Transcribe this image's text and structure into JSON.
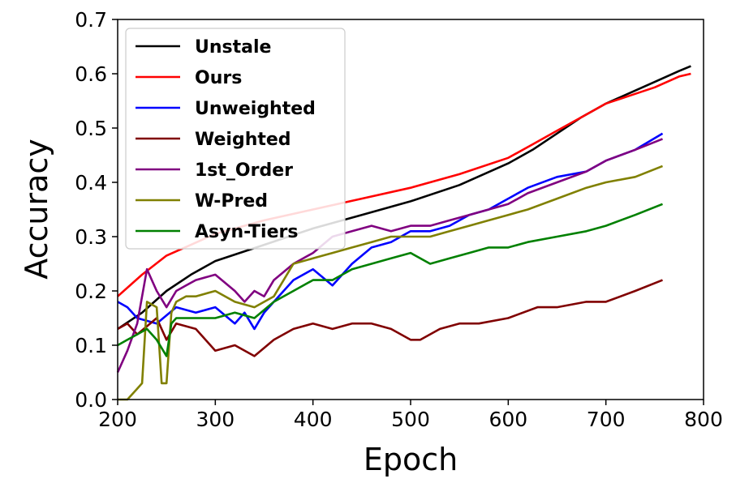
{
  "chart_data": {
    "type": "line",
    "xlabel": "Epoch",
    "ylabel": "Accuracy",
    "xlim": [
      200,
      800
    ],
    "ylim": [
      0.0,
      0.7
    ],
    "x_ticks": [
      "200",
      "300",
      "400",
      "500",
      "600",
      "700",
      "800"
    ],
    "y_ticks": [
      "0.0",
      "0.1",
      "0.2",
      "0.3",
      "0.4",
      "0.5",
      "0.6",
      "0.7"
    ],
    "grid": false,
    "legend_position": "top-left",
    "series": [
      {
        "name": "Unstale",
        "color": "#000000",
        "x": [
          200,
          225,
          250,
          275,
          300,
          350,
          400,
          450,
          500,
          550,
          600,
          625,
          650,
          675,
          700,
          725,
          750,
          775,
          787
        ],
        "y": [
          0.13,
          0.16,
          0.2,
          0.23,
          0.255,
          0.285,
          0.315,
          0.34,
          0.365,
          0.395,
          0.435,
          0.46,
          0.49,
          0.52,
          0.545,
          0.565,
          0.585,
          0.605,
          0.614
        ]
      },
      {
        "name": "Ours",
        "color": "#ff0000",
        "x": [
          200,
          225,
          250,
          275,
          300,
          350,
          400,
          450,
          500,
          550,
          600,
          625,
          650,
          675,
          700,
          725,
          750,
          775,
          787
        ],
        "y": [
          0.19,
          0.23,
          0.265,
          0.285,
          0.305,
          0.33,
          0.35,
          0.37,
          0.39,
          0.415,
          0.445,
          0.47,
          0.495,
          0.52,
          0.545,
          0.56,
          0.575,
          0.595,
          0.6
        ]
      },
      {
        "name": "Unweighted",
        "color": "#0000ff",
        "x": [
          200,
          210,
          220,
          240,
          260,
          280,
          300,
          320,
          330,
          340,
          350,
          360,
          380,
          400,
          420,
          440,
          460,
          480,
          500,
          520,
          540,
          560,
          580,
          600,
          620,
          650,
          680,
          700,
          730,
          758
        ],
        "y": [
          0.18,
          0.17,
          0.15,
          0.14,
          0.17,
          0.16,
          0.17,
          0.14,
          0.16,
          0.13,
          0.16,
          0.18,
          0.22,
          0.24,
          0.21,
          0.25,
          0.28,
          0.29,
          0.31,
          0.31,
          0.32,
          0.34,
          0.35,
          0.37,
          0.39,
          0.41,
          0.42,
          0.44,
          0.46,
          0.49
        ]
      },
      {
        "name": "Weighted",
        "color": "#800000",
        "x": [
          200,
          210,
          220,
          240,
          250,
          260,
          280,
          300,
          320,
          340,
          360,
          380,
          400,
          420,
          440,
          460,
          480,
          500,
          510,
          530,
          550,
          570,
          600,
          630,
          650,
          680,
          700,
          730,
          758
        ],
        "y": [
          0.13,
          0.14,
          0.12,
          0.15,
          0.11,
          0.14,
          0.13,
          0.09,
          0.1,
          0.08,
          0.11,
          0.13,
          0.14,
          0.13,
          0.14,
          0.14,
          0.13,
          0.11,
          0.11,
          0.13,
          0.14,
          0.14,
          0.15,
          0.17,
          0.17,
          0.18,
          0.18,
          0.2,
          0.22
        ]
      },
      {
        "name": "1st_Order",
        "color": "#800080",
        "x": [
          200,
          210,
          220,
          230,
          240,
          250,
          260,
          270,
          280,
          300,
          320,
          330,
          340,
          350,
          360,
          380,
          400,
          420,
          440,
          460,
          480,
          500,
          520,
          540,
          560,
          580,
          600,
          620,
          650,
          680,
          700,
          730,
          758
        ],
        "y": [
          0.05,
          0.09,
          0.14,
          0.24,
          0.2,
          0.17,
          0.2,
          0.21,
          0.22,
          0.23,
          0.2,
          0.18,
          0.2,
          0.19,
          0.22,
          0.25,
          0.27,
          0.3,
          0.31,
          0.32,
          0.31,
          0.32,
          0.32,
          0.33,
          0.34,
          0.35,
          0.36,
          0.38,
          0.4,
          0.42,
          0.44,
          0.46,
          0.48
        ]
      },
      {
        "name": "W-Pred",
        "color": "#808000",
        "x": [
          200,
          210,
          220,
          225,
          230,
          240,
          245,
          250,
          255,
          260,
          270,
          280,
          300,
          320,
          340,
          360,
          380,
          400,
          420,
          440,
          460,
          480,
          500,
          520,
          540,
          560,
          580,
          600,
          620,
          650,
          680,
          700,
          730,
          758
        ],
        "y": [
          0.0,
          0.0,
          0.02,
          0.03,
          0.18,
          0.17,
          0.03,
          0.03,
          0.16,
          0.18,
          0.19,
          0.19,
          0.2,
          0.18,
          0.17,
          0.19,
          0.25,
          0.26,
          0.27,
          0.28,
          0.29,
          0.3,
          0.3,
          0.3,
          0.31,
          0.32,
          0.33,
          0.34,
          0.35,
          0.37,
          0.39,
          0.4,
          0.41,
          0.43
        ]
      },
      {
        "name": "Asyn-Tiers",
        "color": "#008000",
        "x": [
          200,
          210,
          220,
          230,
          240,
          250,
          255,
          260,
          280,
          300,
          320,
          340,
          360,
          380,
          400,
          420,
          440,
          460,
          480,
          500,
          520,
          540,
          560,
          580,
          600,
          620,
          650,
          680,
          700,
          730,
          758
        ],
        "y": [
          0.1,
          0.11,
          0.12,
          0.13,
          0.11,
          0.08,
          0.14,
          0.15,
          0.15,
          0.15,
          0.16,
          0.15,
          0.18,
          0.2,
          0.22,
          0.22,
          0.24,
          0.25,
          0.26,
          0.27,
          0.25,
          0.26,
          0.27,
          0.28,
          0.28,
          0.29,
          0.3,
          0.31,
          0.32,
          0.34,
          0.36
        ]
      }
    ]
  }
}
